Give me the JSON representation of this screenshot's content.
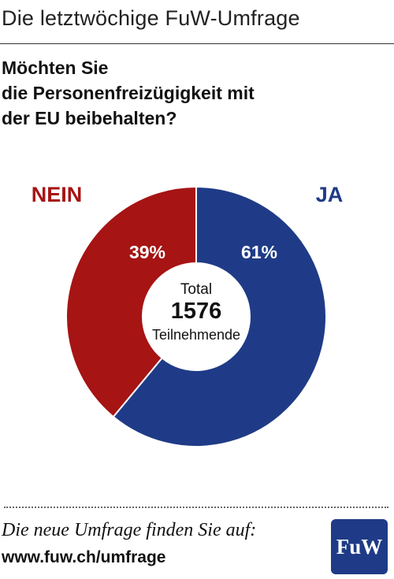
{
  "header": {
    "title": "Die letztwöchige FuW-Umfrage"
  },
  "question": {
    "lines": [
      "Möchten Sie",
      "die Personenfreizügigkeit mit",
      "der EU beibehalten?"
    ]
  },
  "colors": {
    "ja": "#1f3b87",
    "nein": "#a61414",
    "logo": "#1f3b87"
  },
  "chart_data": {
    "type": "pie",
    "title": "",
    "slices": [
      {
        "label": "JA",
        "value": 61,
        "display": "61%",
        "color": "#1f3b87"
      },
      {
        "label": "NEIN",
        "value": 39,
        "display": "39%",
        "color": "#a61414"
      }
    ],
    "center": {
      "top": "Total",
      "number": "1576",
      "bottom": "Teilnehmende"
    }
  },
  "footer": {
    "text": "Die neue Umfrage finden Sie auf:",
    "url": "www.fuw.ch/umfrage",
    "logo_text": "FuW"
  }
}
